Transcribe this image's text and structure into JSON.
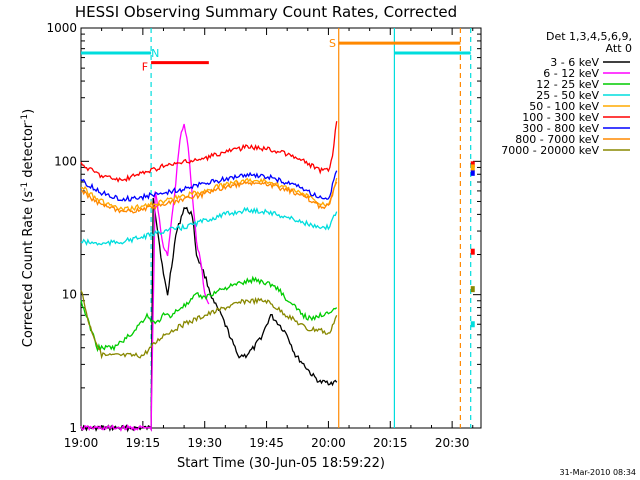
{
  "chart_data": {
    "type": "line",
    "title": "HESSI Observing Summary Count Rates, Corrected",
    "xlabel": "Start Time (30-Jun-05 18:59:22)",
    "ylabel_parts": [
      "Corrected Count Rate (s",
      "-1",
      " detector",
      "-1",
      ")"
    ],
    "y_scale": "log",
    "ylim": [
      1,
      1000
    ],
    "xlim": [
      0,
      97
    ],
    "x_unit": "minutes after 19:00",
    "x_ticks": [
      {
        "t": 0,
        "label": "19:00"
      },
      {
        "t": 15,
        "label": "19:15"
      },
      {
        "t": 30,
        "label": "19:30"
      },
      {
        "t": 45,
        "label": "19:45"
      },
      {
        "t": 60,
        "label": "20:00"
      },
      {
        "t": 75,
        "label": "20:15"
      },
      {
        "t": 90,
        "label": "20:30"
      }
    ],
    "y_ticks": [
      {
        "v": 1,
        "label": "1"
      },
      {
        "v": 10,
        "label": "10"
      },
      {
        "v": 100,
        "label": "100"
      },
      {
        "v": 1000,
        "label": "1000"
      }
    ],
    "legend_header": [
      "Det 1,3,4,5,6,9,",
      "Att 0"
    ],
    "legend_position": "top-right outside plot",
    "series": [
      {
        "name": "3 - 6 keV",
        "color": "#000000",
        "t": [
          0,
          17,
          17.5,
          20,
          21,
          23,
          25,
          27,
          28,
          30,
          32,
          34,
          36,
          38,
          40,
          42,
          44,
          46,
          48,
          50,
          52,
          54,
          56,
          58,
          60,
          62
        ],
        "v": [
          1,
          1,
          55,
          14,
          10,
          28,
          45,
          40,
          20,
          14,
          9,
          7,
          5,
          3.5,
          3.5,
          4,
          5,
          7,
          6,
          5,
          3.5,
          3,
          2.5,
          2.2,
          2.2,
          2.2
        ]
      },
      {
        "name": "6 - 12 keV",
        "color": "#ff00ff",
        "t": [
          0,
          17,
          18,
          20,
          21,
          23,
          24,
          25,
          26,
          27,
          28,
          29,
          30,
          31
        ],
        "v": [
          1,
          1,
          60,
          22,
          20,
          70,
          150,
          190,
          130,
          55,
          25,
          18,
          10,
          8.5
        ]
      },
      {
        "name": "12 - 25 keV",
        "color": "#00cc00",
        "t": [
          0,
          4,
          8,
          12,
          16,
          18,
          20,
          22,
          24,
          26,
          28,
          30,
          34,
          38,
          42,
          46,
          48,
          50,
          52,
          54,
          56,
          58,
          60,
          62
        ],
        "v": [
          9,
          4,
          4,
          5,
          7,
          6,
          7,
          7,
          8,
          8.5,
          10,
          9.5,
          11,
          12,
          13,
          12,
          11,
          9,
          8,
          7,
          6.5,
          7,
          7.5,
          8
        ]
      },
      {
        "name": "25 - 50 keV",
        "color": "#00dddd",
        "t": [
          0,
          5,
          10,
          15,
          20,
          25,
          30,
          35,
          40,
          45,
          50,
          55,
          58,
          60,
          62
        ],
        "v": [
          25,
          24,
          25,
          27,
          30,
          32,
          36,
          40,
          43,
          42,
          38,
          34,
          31,
          32,
          42
        ]
      },
      {
        "name": "50 - 100 keV",
        "color": "#ffaa00",
        "t": [
          0,
          5,
          10,
          15,
          20,
          25,
          30,
          35,
          40,
          45,
          50,
          55,
          58,
          60,
          62
        ],
        "v": [
          65,
          50,
          43,
          46,
          50,
          55,
          60,
          67,
          72,
          71,
          63,
          55,
          48,
          48,
          75
        ]
      },
      {
        "name": "100 - 300 keV",
        "color": "#ff0000",
        "t": [
          0,
          5,
          10,
          15,
          20,
          25,
          30,
          35,
          40,
          45,
          50,
          55,
          58,
          60,
          61,
          62
        ],
        "v": [
          95,
          78,
          72,
          82,
          92,
          98,
          105,
          118,
          128,
          125,
          113,
          97,
          85,
          85,
          110,
          200
        ]
      },
      {
        "name": "300 - 800 keV",
        "color": "#0000ff",
        "t": [
          0,
          5,
          10,
          15,
          20,
          25,
          30,
          35,
          40,
          45,
          50,
          55,
          58,
          60,
          62
        ],
        "v": [
          72,
          58,
          52,
          54,
          58,
          62,
          68,
          74,
          79,
          77,
          69,
          60,
          53,
          52,
          85
        ]
      },
      {
        "name": "800 - 7000 keV",
        "color": "#ff8800",
        "t": [
          0,
          5,
          10,
          15,
          20,
          25,
          30,
          35,
          40,
          45,
          50,
          55,
          58,
          60,
          62
        ],
        "v": [
          60,
          47,
          41,
          44,
          47,
          52,
          57,
          64,
          69,
          68,
          61,
          53,
          46,
          46,
          70
        ]
      },
      {
        "name": "7000 - 20000 keV",
        "color": "#888800",
        "t": [
          0,
          2,
          5,
          10,
          15,
          20,
          25,
          30,
          35,
          40,
          45,
          50,
          55,
          58,
          60,
          62
        ],
        "v": [
          11,
          6,
          3.5,
          3.5,
          3.5,
          5,
          6,
          7,
          8,
          9,
          9,
          7,
          5.5,
          5.5,
          5,
          7
        ]
      }
    ],
    "annotations": [
      {
        "label": "N",
        "color": "#00dddd",
        "t_start": 0,
        "t_end": 17,
        "v": 650,
        "label_t": 18
      },
      {
        "label": "F",
        "color": "#ff0000",
        "t_start": 17,
        "t_end": 31,
        "v": 550,
        "label_t": 15.5
      },
      {
        "label": "S",
        "color": "#ff8800",
        "t_start": 62.5,
        "t_end": 92,
        "v": 770,
        "label_t": 61
      },
      {
        "label": "",
        "color": "#00dddd",
        "t_start": 76,
        "t_end": 94.5,
        "v": 650,
        "label_t": 0
      }
    ],
    "vertical_lines": [
      {
        "t": 17,
        "color": "#00dddd",
        "style": "dashed"
      },
      {
        "t": 62.5,
        "color": "#ff8800",
        "style": "solid"
      },
      {
        "t": 76,
        "color": "#00dddd",
        "style": "solid"
      },
      {
        "t": 92,
        "color": "#ff8800",
        "style": "dashed"
      },
      {
        "t": 94.5,
        "color": "#00dddd",
        "style": "dashed"
      }
    ],
    "late_markers": [
      {
        "t": 95,
        "v": 95,
        "color": "#ff0000"
      },
      {
        "t": 95,
        "v": 82,
        "color": "#0000ff"
      },
      {
        "t": 95,
        "v": 90,
        "color": "#ffaa00"
      },
      {
        "t": 95,
        "v": 21,
        "color": "#ff0000"
      },
      {
        "t": 95,
        "v": 11,
        "color": "#888800"
      },
      {
        "t": 95,
        "v": 6,
        "color": "#00dddd"
      }
    ],
    "timestamp": "31-Mar-2010 08:34"
  }
}
